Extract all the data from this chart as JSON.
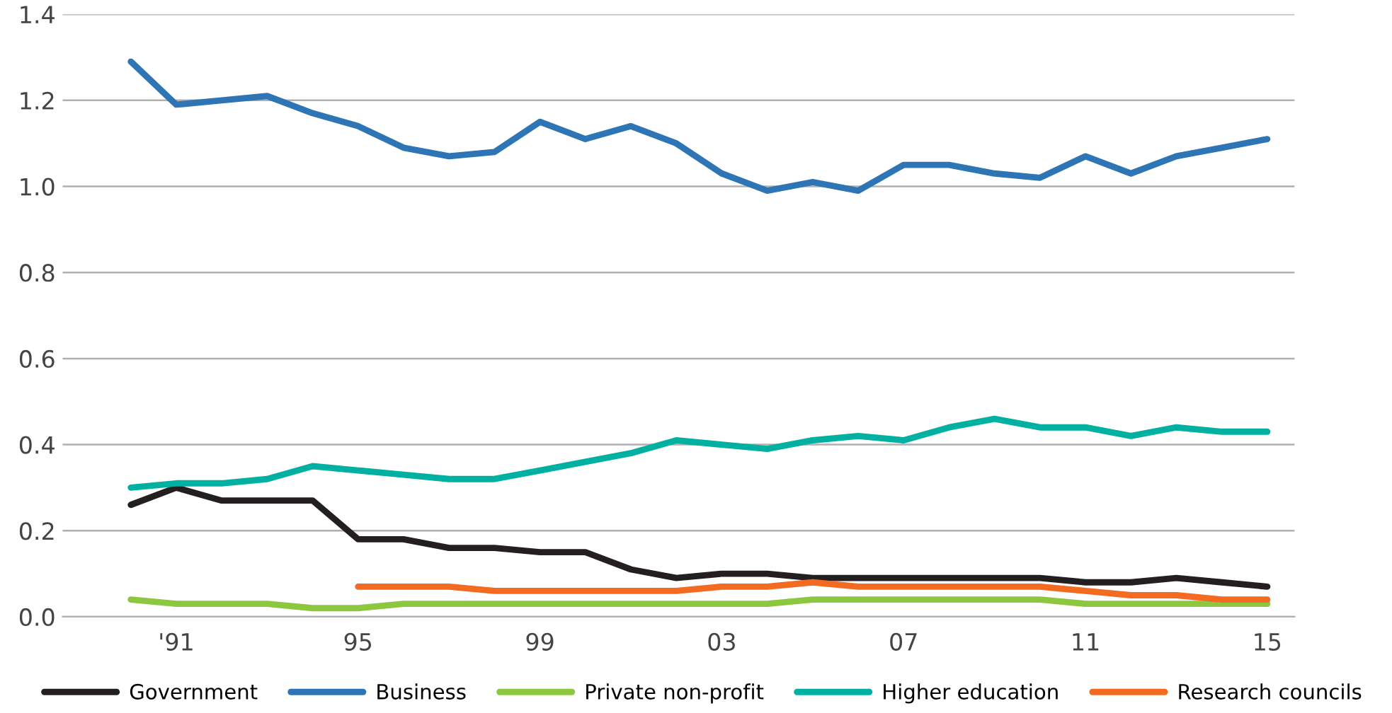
{
  "chart_data": {
    "type": "line",
    "x": [
      1990,
      1991,
      1992,
      1993,
      1994,
      1995,
      1996,
      1997,
      1998,
      1999,
      2000,
      2001,
      2002,
      2003,
      2004,
      2005,
      2006,
      2007,
      2008,
      2009,
      2010,
      2011,
      2012,
      2013,
      2014,
      2015
    ],
    "series": [
      {
        "name": "Government",
        "color": "#231f20",
        "values": [
          0.26,
          0.3,
          0.27,
          0.27,
          0.27,
          0.18,
          0.18,
          0.16,
          0.16,
          0.15,
          0.15,
          0.11,
          0.09,
          0.1,
          0.1,
          0.09,
          0.09,
          0.09,
          0.09,
          0.09,
          0.09,
          0.08,
          0.08,
          0.09,
          0.08,
          0.07
        ]
      },
      {
        "name": "Business",
        "color": "#2e75b6",
        "values": [
          1.29,
          1.19,
          1.2,
          1.21,
          1.17,
          1.14,
          1.09,
          1.07,
          1.08,
          1.15,
          1.11,
          1.14,
          1.1,
          1.03,
          0.99,
          1.01,
          0.99,
          1.05,
          1.05,
          1.03,
          1.02,
          1.07,
          1.03,
          1.07,
          1.09,
          1.11
        ]
      },
      {
        "name": "Private non-profit",
        "color": "#8dc63f",
        "values": [
          0.04,
          0.03,
          0.03,
          0.03,
          0.02,
          0.02,
          0.03,
          0.03,
          0.03,
          0.03,
          0.03,
          0.03,
          0.03,
          0.03,
          0.03,
          0.04,
          0.04,
          0.04,
          0.04,
          0.04,
          0.04,
          0.03,
          0.03,
          0.03,
          0.03,
          0.03
        ]
      },
      {
        "name": "Higher education",
        "color": "#00b0a0",
        "values": [
          0.3,
          0.31,
          0.31,
          0.32,
          0.35,
          0.34,
          0.33,
          0.32,
          0.32,
          0.34,
          0.36,
          0.38,
          0.41,
          0.4,
          0.39,
          0.41,
          0.42,
          0.41,
          0.44,
          0.46,
          0.44,
          0.44,
          0.42,
          0.44,
          0.43,
          0.43
        ]
      },
      {
        "name": "Research councils",
        "color": "#f26b21",
        "values": [
          null,
          null,
          null,
          null,
          null,
          0.07,
          0.07,
          0.07,
          0.06,
          0.06,
          0.06,
          0.06,
          0.06,
          0.07,
          0.07,
          0.08,
          0.07,
          0.07,
          0.07,
          0.07,
          0.07,
          0.06,
          0.05,
          0.05,
          0.04,
          0.04
        ]
      }
    ],
    "xlim": [
      1988.5,
      2015.6
    ],
    "xticks": [
      {
        "value": 1991,
        "label": "'91"
      },
      {
        "value": 1995,
        "label": "95"
      },
      {
        "value": 1999,
        "label": "99"
      },
      {
        "value": 2003,
        "label": "03"
      },
      {
        "value": 2007,
        "label": "07"
      },
      {
        "value": 2011,
        "label": "11"
      },
      {
        "value": 2015,
        "label": "15"
      }
    ],
    "ylim": [
      0,
      1.4
    ],
    "yticks": [
      {
        "value": 0,
        "label": "0.0"
      },
      {
        "value": 0.2,
        "label": "0.2"
      },
      {
        "value": 0.4,
        "label": "0.4"
      },
      {
        "value": 0.6,
        "label": "0.6"
      },
      {
        "value": 0.8,
        "label": "0.8"
      },
      {
        "value": 1.0,
        "label": "1.0"
      },
      {
        "value": 1.2,
        "label": "1.2"
      },
      {
        "value": 1.4,
        "label": "1.4"
      }
    ],
    "grid": "y",
    "legend": "bottom",
    "marker": "none",
    "line_style": "solid"
  }
}
